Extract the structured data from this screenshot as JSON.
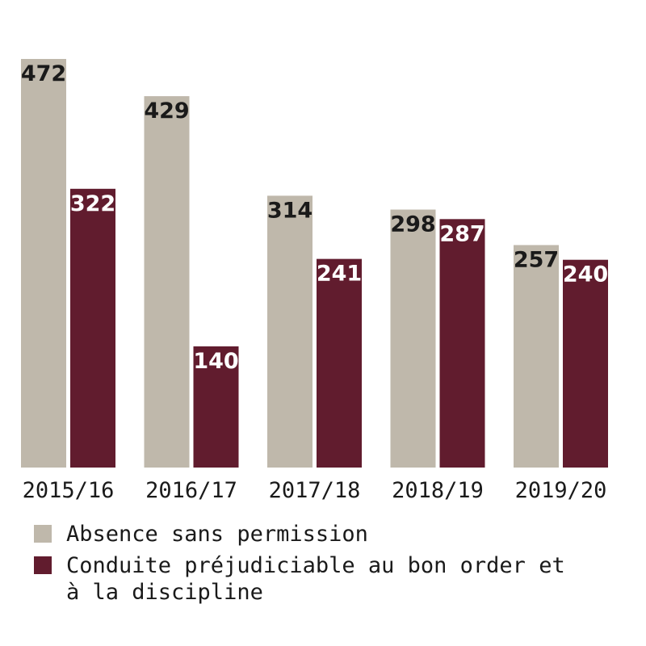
{
  "chart_data": {
    "type": "bar",
    "categories": [
      "2015/16",
      "2016/17",
      "2017/18",
      "2018/19",
      "2019/20"
    ],
    "series": [
      {
        "name": "Absence sans permission",
        "values": [
          472,
          429,
          314,
          298,
          257
        ],
        "color": "#bfb8ab",
        "label_color": "#1a1a1a"
      },
      {
        "name": "Conduite préjudiciable au bon order et à la discipline",
        "values": [
          322,
          140,
          241,
          287,
          240
        ],
        "color": "#611c2e",
        "label_color": "#ffffff"
      }
    ],
    "title": "",
    "xlabel": "",
    "ylabel": "",
    "ylim": [
      0,
      472
    ],
    "grid": false,
    "legend_position": "bottom-left"
  }
}
